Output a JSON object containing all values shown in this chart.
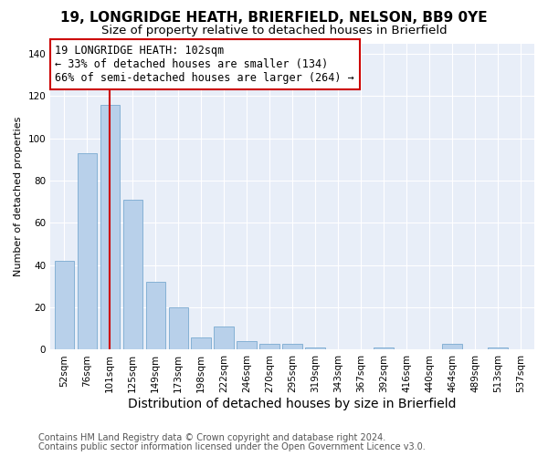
{
  "title": "19, LONGRIDGE HEATH, BRIERFIELD, NELSON, BB9 0YE",
  "subtitle": "Size of property relative to detached houses in Brierfield",
  "xlabel": "Distribution of detached houses by size in Brierfield",
  "ylabel": "Number of detached properties",
  "footnote1": "Contains HM Land Registry data © Crown copyright and database right 2024.",
  "footnote2": "Contains public sector information licensed under the Open Government Licence v3.0.",
  "bar_labels": [
    "52sqm",
    "76sqm",
    "101sqm",
    "125sqm",
    "149sqm",
    "173sqm",
    "198sqm",
    "222sqm",
    "246sqm",
    "270sqm",
    "295sqm",
    "319sqm",
    "343sqm",
    "367sqm",
    "392sqm",
    "416sqm",
    "440sqm",
    "464sqm",
    "489sqm",
    "513sqm",
    "537sqm"
  ],
  "bar_values": [
    42,
    93,
    116,
    71,
    32,
    20,
    6,
    11,
    4,
    3,
    3,
    1,
    0,
    0,
    1,
    0,
    0,
    3,
    0,
    1,
    0
  ],
  "bar_color": "#b8d0ea",
  "bar_edge_color": "#7aaad0",
  "highlight_bar_index": 2,
  "highlight_color": "#cc0000",
  "ylim": [
    0,
    145
  ],
  "yticks": [
    0,
    20,
    40,
    60,
    80,
    100,
    120,
    140
  ],
  "annotation_text_line1": "19 LONGRIDGE HEATH: 102sqm",
  "annotation_text_line2": "← 33% of detached houses are smaller (134)",
  "annotation_text_line3": "66% of semi-detached houses are larger (264) →",
  "bg_color": "#ffffff",
  "plot_bg_color": "#e8eef8",
  "grid_color": "#ffffff",
  "title_fontsize": 11,
  "subtitle_fontsize": 9.5,
  "annotation_fontsize": 8.5,
  "ylabel_fontsize": 8,
  "xlabel_fontsize": 10,
  "tick_fontsize": 7.5,
  "footnote_fontsize": 7,
  "footnote_color": "#555555"
}
